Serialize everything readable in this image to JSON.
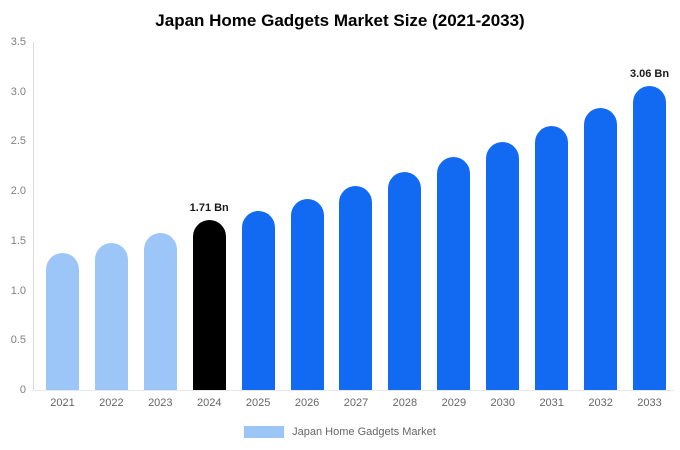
{
  "legend": {
    "label": "Japan Home Gadgets Market",
    "swatch_color": "#9cc6f7"
  },
  "chart_data": {
    "type": "bar",
    "title": "Japan Home Gadgets Market Size (2021-2033)",
    "categories": [
      "2021",
      "2022",
      "2023",
      "2024",
      "2025",
      "2026",
      "2027",
      "2028",
      "2029",
      "2030",
      "2031",
      "2032",
      "2033"
    ],
    "values": [
      1.38,
      1.48,
      1.58,
      1.71,
      1.8,
      1.92,
      2.05,
      2.19,
      2.34,
      2.49,
      2.66,
      2.84,
      3.06
    ],
    "unit": "Bn",
    "xlabel": "",
    "ylabel": "",
    "ylim": [
      0,
      3.5
    ],
    "yticks": [
      0,
      0.5,
      1.0,
      1.5,
      2.0,
      2.5,
      3.0,
      3.5
    ],
    "ytick_labels": [
      "0",
      "0.5",
      "1.0",
      "1.5",
      "2.0",
      "2.5",
      "3.0",
      "3.5"
    ],
    "grid": false,
    "legend_position": "bottom",
    "bar_colors": [
      "#9cc6f7",
      "#9cc6f7",
      "#9cc6f7",
      "#000000",
      "#1269f2",
      "#1269f2",
      "#1269f2",
      "#1269f2",
      "#1269f2",
      "#1269f2",
      "#1269f2",
      "#1269f2",
      "#1269f2"
    ],
    "annotations": [
      {
        "index": 3,
        "text": "1.71 Bn"
      },
      {
        "index": 12,
        "text": "3.06 Bn"
      }
    ]
  }
}
